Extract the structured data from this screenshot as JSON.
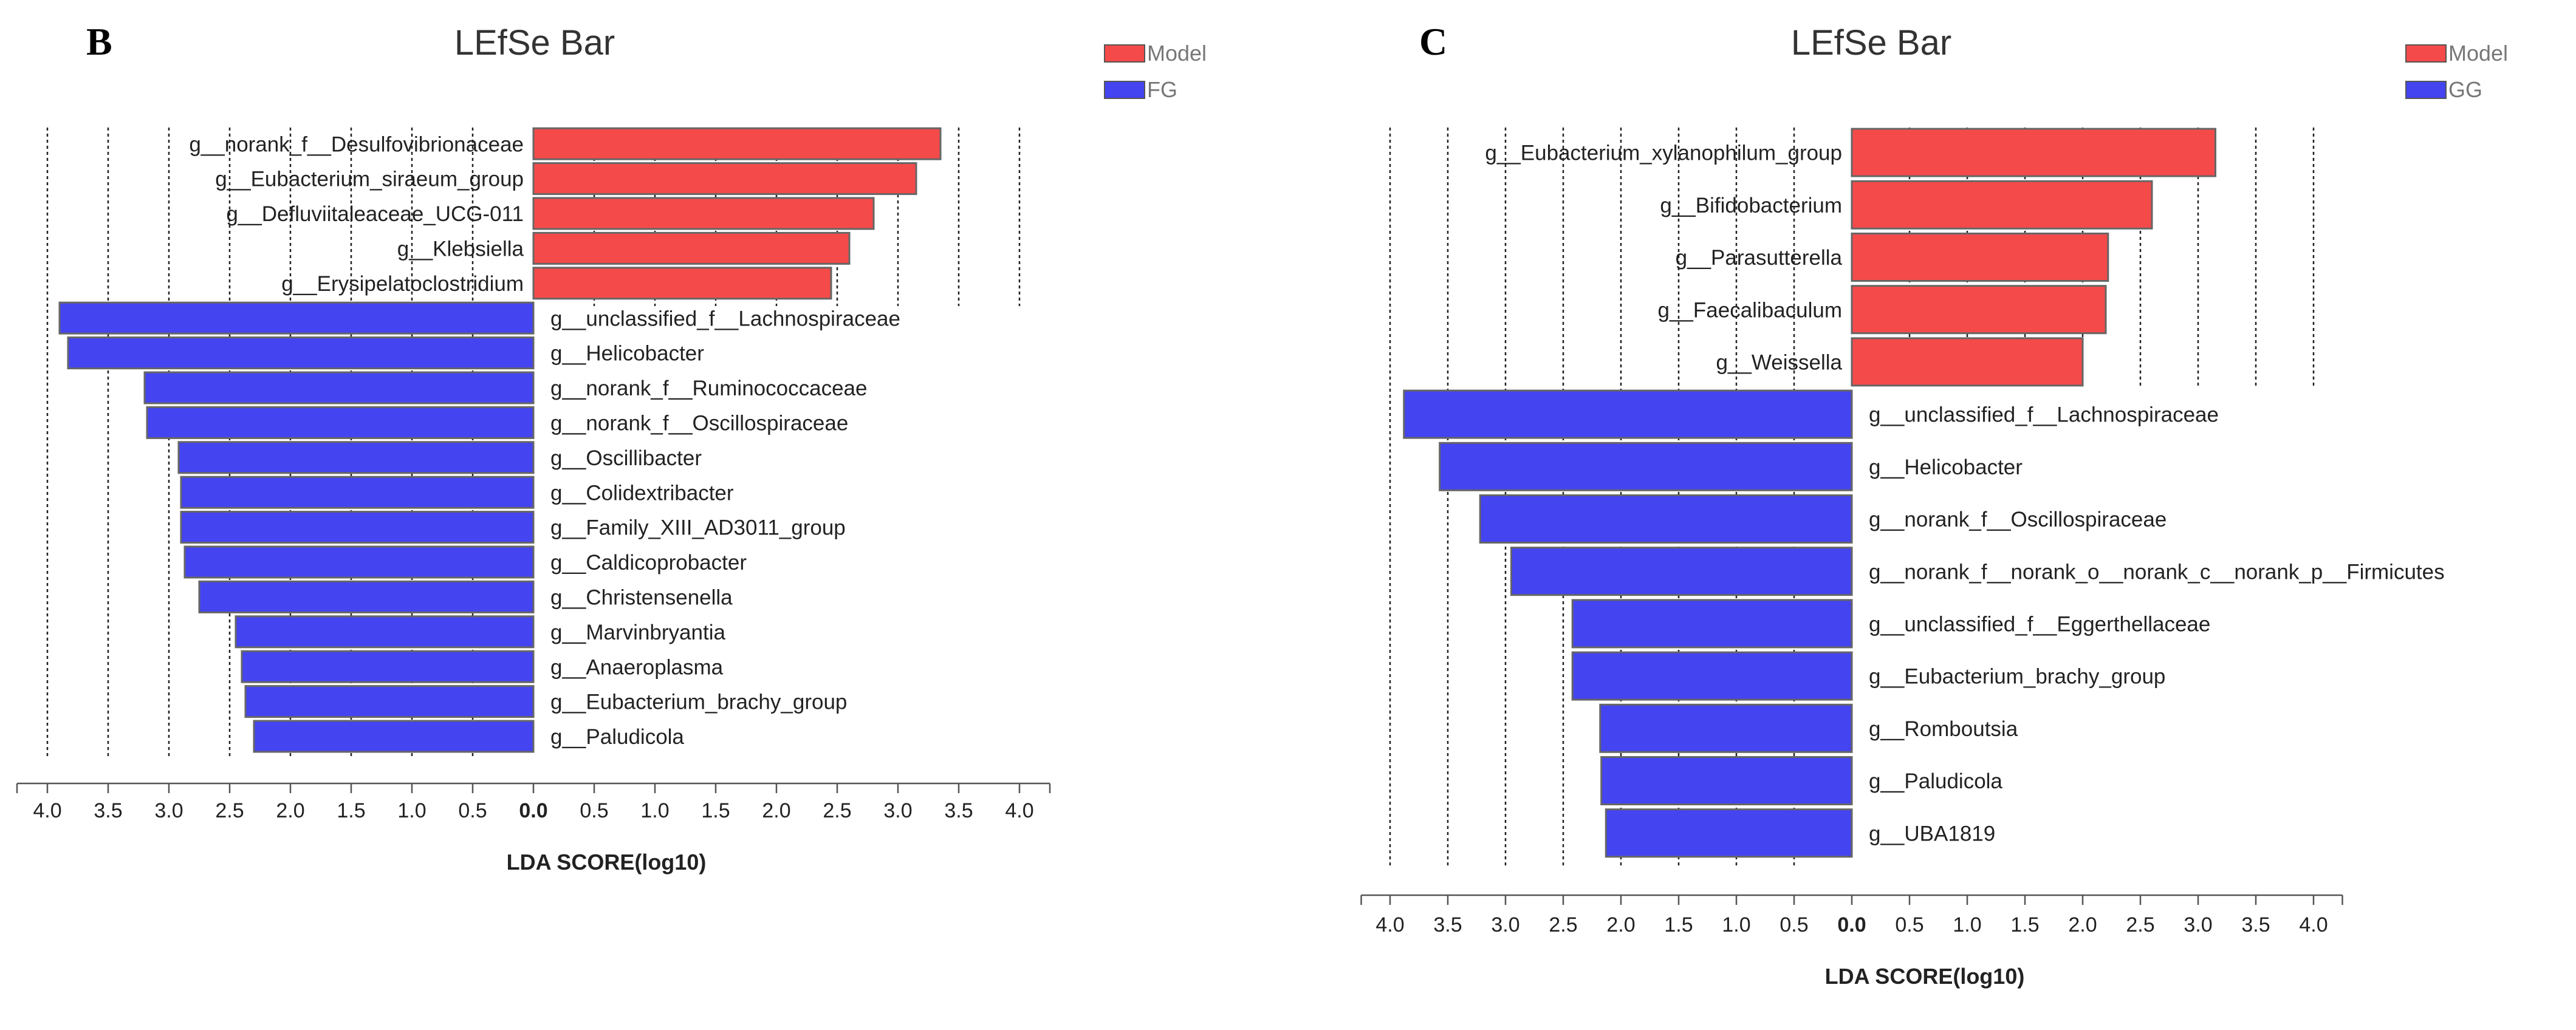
{
  "chart_data": [
    {
      "type": "bar",
      "panel": "B",
      "title": "LEfSe Bar",
      "xlabel": "LDA SCORE(log10)",
      "xlim": [
        -4.0,
        4.0
      ],
      "x_ticks": [
        "4.0",
        "3.5",
        "3.0",
        "2.5",
        "2.0",
        "1.5",
        "1.0",
        "0.5",
        "0.0",
        "0.5",
        "1.0",
        "1.5",
        "2.0",
        "2.5",
        "3.0",
        "3.5",
        "4.0"
      ],
      "colors": {
        "Model": "#f54a4a",
        "FG": "#4444f0"
      },
      "legend": [
        "Model",
        "FG"
      ],
      "legend_position": "top-right",
      "series": [
        {
          "name": "Model",
          "categories": [
            "g__norank_f__Desulfovibrionaceae",
            "g__Eubacterium_siraeum_group",
            "g__Defluviitaleaceae_UCG-011",
            "g__Klebsiella",
            "g__Erysipelatoclostridium"
          ],
          "values": [
            3.35,
            3.15,
            2.8,
            2.6,
            2.45
          ]
        },
        {
          "name": "FG",
          "categories": [
            "g__unclassified_f__Lachnospiraceae",
            "g__Helicobacter",
            "g__norank_f__Ruminococcaceae",
            "g__norank_f__Oscillospiraceae",
            "g__Oscillibacter",
            "g__Colidextribacter",
            "g__Family_XIII_AD3011_group",
            "g__Caldicoprobacter",
            "g__Christensenella",
            "g__Marvinbryantia",
            "g__Anaeroplasma",
            "g__Eubacterium_brachy_group",
            "g__Paludicola"
          ],
          "values": [
            3.9,
            3.83,
            3.2,
            3.18,
            2.92,
            2.9,
            2.9,
            2.87,
            2.75,
            2.45,
            2.4,
            2.37,
            2.3
          ]
        }
      ]
    },
    {
      "type": "bar",
      "panel": "C",
      "title": "LEfSe Bar",
      "xlabel": "LDA SCORE(log10)",
      "xlim": [
        -4.0,
        4.0
      ],
      "x_ticks": [
        "4.0",
        "3.5",
        "3.0",
        "2.5",
        "2.0",
        "1.5",
        "1.0",
        "0.5",
        "0.0",
        "0.5",
        "1.0",
        "1.5",
        "2.0",
        "2.5",
        "3.0",
        "3.5",
        "4.0"
      ],
      "colors": {
        "Model": "#f54a4a",
        "GG": "#4444f0"
      },
      "legend": [
        "Model",
        "GG"
      ],
      "legend_position": "top-right",
      "series": [
        {
          "name": "Model",
          "categories": [
            "g__Eubacterium_xylanophilum_group",
            "g__Bifidobacterium",
            "g__Parasutterella",
            "g__Faecalibaculum",
            "g__Weissella"
          ],
          "values": [
            3.15,
            2.6,
            2.22,
            2.2,
            2.0
          ]
        },
        {
          "name": "GG",
          "categories": [
            "g__unclassified_f__Lachnospiraceae",
            "g__Helicobacter",
            "g__norank_f__Oscillospiraceae",
            "g__norank_f__norank_o__norank_c__norank_p__Firmicutes",
            "g__unclassified_f__Eggerthellaceae",
            "g__Eubacterium_brachy_group",
            "g__Romboutsia",
            "g__Paludicola",
            "g__UBA1819"
          ],
          "values": [
            3.88,
            3.57,
            3.22,
            2.95,
            2.42,
            2.42,
            2.18,
            2.17,
            2.13
          ]
        }
      ]
    }
  ]
}
